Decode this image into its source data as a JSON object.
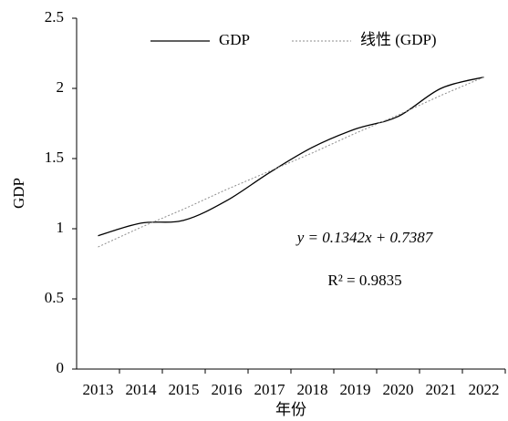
{
  "chart_data": {
    "type": "line",
    "categories": [
      "2013",
      "2014",
      "2015",
      "2016",
      "2017",
      "2018",
      "2019",
      "2020",
      "2021",
      "2022"
    ],
    "series": [
      {
        "name": "GDP",
        "color": "#000000",
        "line_style": "solid",
        "smooth": true,
        "values": [
          0.95,
          1.04,
          1.06,
          1.2,
          1.4,
          1.58,
          1.71,
          1.8,
          2.0,
          2.08
        ]
      },
      {
        "name": "线性 (GDP)",
        "color": "#8c8c8c",
        "line_style": "dotted",
        "smooth": false,
        "values": [
          0.87,
          1.01,
          1.14,
          1.28,
          1.41,
          1.54,
          1.68,
          1.81,
          1.95,
          2.08
        ]
      }
    ],
    "ylim": [
      0,
      2.5
    ],
    "yticks": [
      0,
      0.5,
      1,
      1.5,
      2,
      2.5
    ],
    "ylabel": "GDP",
    "xlabel": "年份",
    "annotations": [
      "y = 0.1342x + 0.7387",
      "R² = 0.9835"
    ],
    "legend": "top",
    "grid": false
  }
}
